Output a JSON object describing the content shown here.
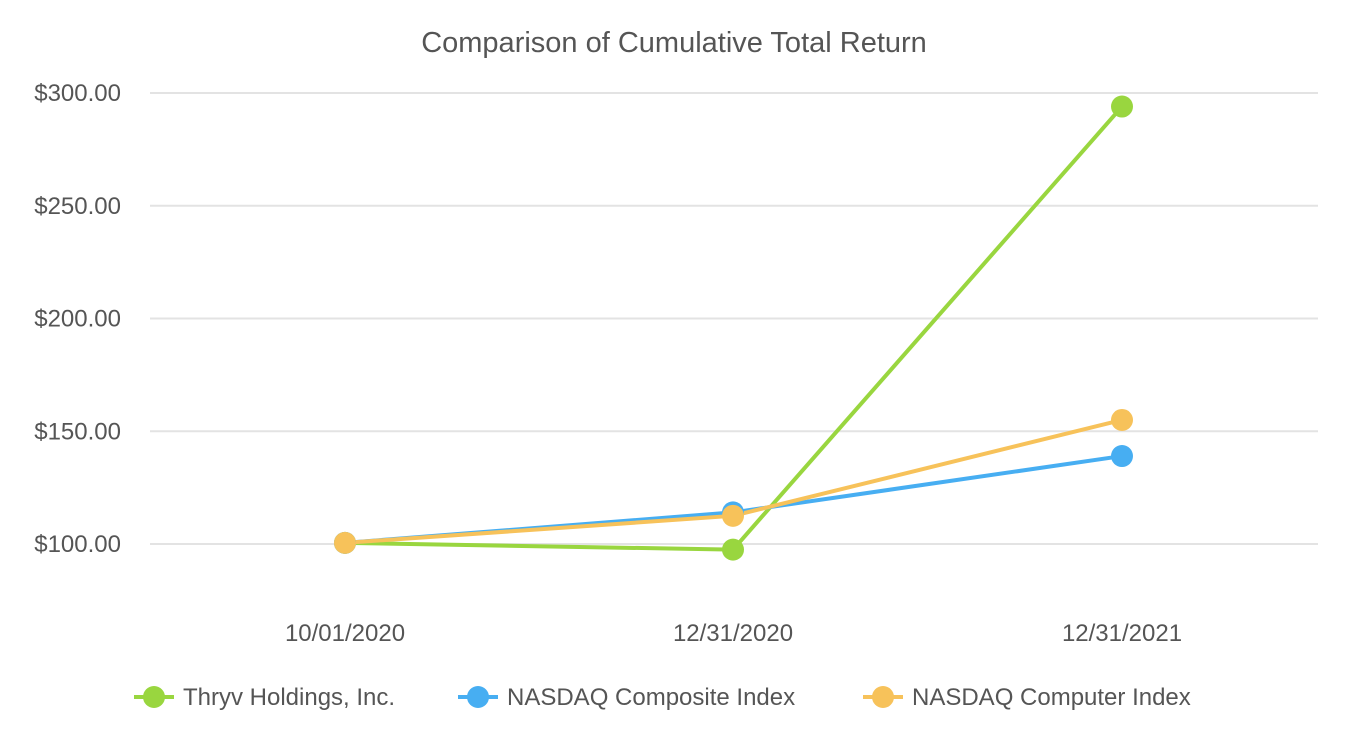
{
  "chart_data": {
    "type": "line",
    "title": "Comparison of Cumulative Total Return",
    "xlabel": "",
    "ylabel": "",
    "categories": [
      "10/01/2020",
      "12/31/2020",
      "12/31/2021"
    ],
    "y_ticks": [
      {
        "value": 100,
        "label": "$100.00"
      },
      {
        "value": 150,
        "label": "$150.00"
      },
      {
        "value": 200,
        "label": "$200.00"
      },
      {
        "value": 250,
        "label": "$250.00"
      },
      {
        "value": 300,
        "label": "$300.00"
      }
    ],
    "ylim": [
      100,
      300
    ],
    "grid": true,
    "legend_position": "bottom",
    "series": [
      {
        "name": "Thryv Holdings, Inc.",
        "color": "#99d63f",
        "values": [
          100.5,
          97.5,
          294
        ]
      },
      {
        "name": "NASDAQ Composite Index",
        "color": "#47aef2",
        "values": [
          100.5,
          114,
          139
        ]
      },
      {
        "name": "NASDAQ Computer Index",
        "color": "#f7c25a",
        "values": [
          100.5,
          112.5,
          155
        ]
      }
    ]
  }
}
